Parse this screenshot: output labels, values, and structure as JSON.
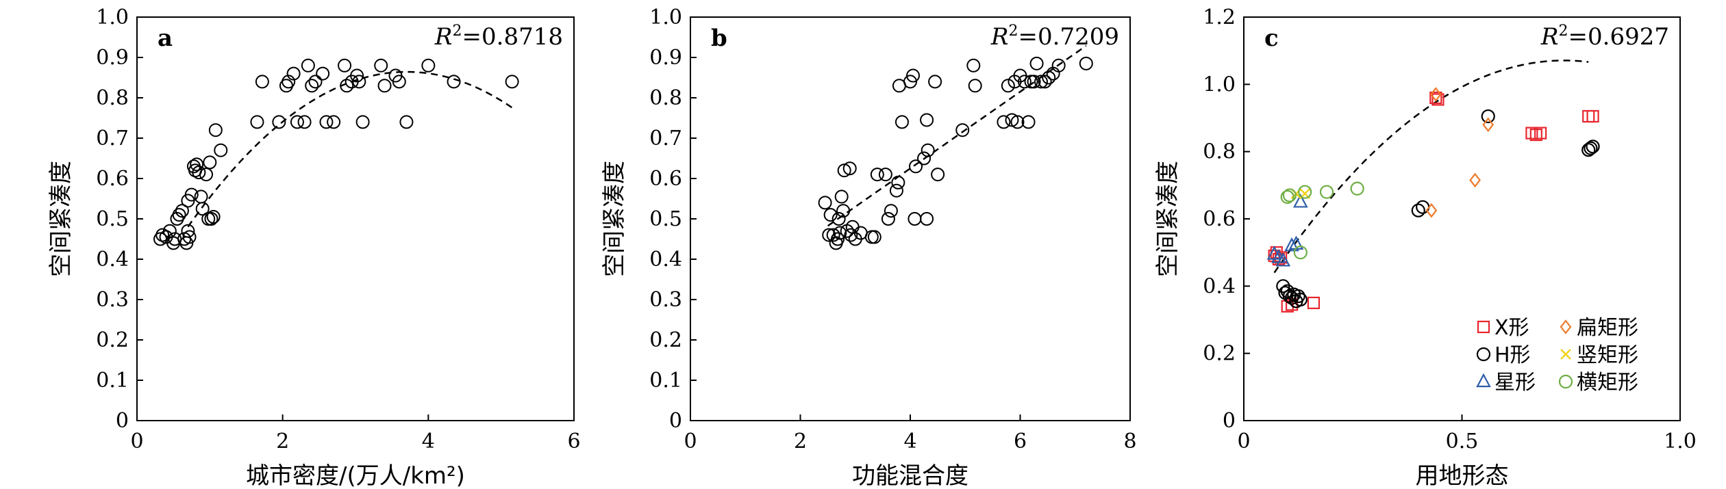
{
  "chart_data": [
    {
      "type": "scatter",
      "panel_label": "a",
      "r2_label": "R",
      "r2_value": "=0.8718",
      "xlabel": "城市密度/(万人/km²)",
      "ylabel": "空间紧凑度",
      "xlim": [
        0,
        6
      ],
      "ylim": [
        0,
        1.0
      ],
      "xticks": [
        "0",
        "2",
        "4",
        "6"
      ],
      "yticks": [
        "0",
        "0.1",
        "0.2",
        "0.3",
        "0.4",
        "0.5",
        "0.6",
        "0.7",
        "0.8",
        "0.9",
        "1.0"
      ],
      "fit": {
        "type": "polynomial",
        "coef": [
          -0.0425,
          0.315,
          0.2806
        ],
        "x_range": [
          0.7,
          5.15
        ]
      },
      "points": [
        [
          0.32,
          0.45
        ],
        [
          0.35,
          0.46
        ],
        [
          0.4,
          0.455
        ],
        [
          0.45,
          0.47
        ],
        [
          0.5,
          0.44
        ],
        [
          0.52,
          0.45
        ],
        [
          0.55,
          0.5
        ],
        [
          0.58,
          0.51
        ],
        [
          0.62,
          0.52
        ],
        [
          0.65,
          0.45
        ],
        [
          0.68,
          0.44
        ],
        [
          0.7,
          0.47
        ],
        [
          0.72,
          0.455
        ],
        [
          0.7,
          0.545
        ],
        [
          0.75,
          0.56
        ],
        [
          0.78,
          0.63
        ],
        [
          0.8,
          0.62
        ],
        [
          0.82,
          0.635
        ],
        [
          0.85,
          0.615
        ],
        [
          0.88,
          0.555
        ],
        [
          0.9,
          0.525
        ],
        [
          0.95,
          0.61
        ],
        [
          0.98,
          0.5
        ],
        [
          1.0,
          0.64
        ],
        [
          1.02,
          0.5
        ],
        [
          1.05,
          0.505
        ],
        [
          1.08,
          0.72
        ],
        [
          1.15,
          0.67
        ],
        [
          1.65,
          0.74
        ],
        [
          1.72,
          0.84
        ],
        [
          1.95,
          0.74
        ],
        [
          2.05,
          0.83
        ],
        [
          2.08,
          0.84
        ],
        [
          2.15,
          0.86
        ],
        [
          2.2,
          0.74
        ],
        [
          2.3,
          0.74
        ],
        [
          2.35,
          0.88
        ],
        [
          2.4,
          0.83
        ],
        [
          2.45,
          0.84
        ],
        [
          2.55,
          0.86
        ],
        [
          2.6,
          0.74
        ],
        [
          2.7,
          0.74
        ],
        [
          2.85,
          0.88
        ],
        [
          2.88,
          0.83
        ],
        [
          2.95,
          0.84
        ],
        [
          3.02,
          0.855
        ],
        [
          3.05,
          0.84
        ],
        [
          3.1,
          0.74
        ],
        [
          3.35,
          0.88
        ],
        [
          3.4,
          0.83
        ],
        [
          3.55,
          0.855
        ],
        [
          3.6,
          0.84
        ],
        [
          3.7,
          0.74
        ],
        [
          4.0,
          0.88
        ],
        [
          4.35,
          0.84
        ],
        [
          5.15,
          0.84
        ]
      ]
    },
    {
      "type": "scatter",
      "panel_label": "b",
      "r2_label": "R",
      "r2_value": "=0.7209",
      "xlabel": "功能混合度",
      "ylabel": "空间紧凑度",
      "xlim": [
        0,
        8
      ],
      "ylim": [
        0,
        1.0
      ],
      "xticks": [
        "0",
        "2",
        "4",
        "6",
        "8"
      ],
      "yticks": [
        "0",
        "0.1",
        "0.2",
        "0.3",
        "0.4",
        "0.5",
        "0.6",
        "0.7",
        "0.8",
        "0.9",
        "1.0"
      ],
      "fit": {
        "type": "linear",
        "coef": [
          0.095,
          0.245
        ],
        "x_range": [
          2.5,
          7.2
        ]
      },
      "points": [
        [
          2.45,
          0.54
        ],
        [
          2.52,
          0.46
        ],
        [
          2.55,
          0.51
        ],
        [
          2.6,
          0.46
        ],
        [
          2.65,
          0.44
        ],
        [
          2.68,
          0.45
        ],
        [
          2.7,
          0.5
        ],
        [
          2.72,
          0.465
        ],
        [
          2.75,
          0.555
        ],
        [
          2.78,
          0.52
        ],
        [
          2.8,
          0.62
        ],
        [
          2.85,
          0.47
        ],
        [
          2.9,
          0.625
        ],
        [
          2.92,
          0.46
        ],
        [
          2.95,
          0.48
        ],
        [
          3.0,
          0.45
        ],
        [
          3.1,
          0.465
        ],
        [
          3.3,
          0.455
        ],
        [
          3.35,
          0.455
        ],
        [
          3.4,
          0.61
        ],
        [
          3.55,
          0.61
        ],
        [
          3.6,
          0.5
        ],
        [
          3.65,
          0.52
        ],
        [
          3.75,
          0.57
        ],
        [
          3.78,
          0.59
        ],
        [
          3.8,
          0.83
        ],
        [
          3.85,
          0.74
        ],
        [
          4.0,
          0.84
        ],
        [
          4.05,
          0.855
        ],
        [
          4.08,
          0.5
        ],
        [
          4.1,
          0.63
        ],
        [
          4.25,
          0.65
        ],
        [
          4.3,
          0.5
        ],
        [
          4.32,
          0.67
        ],
        [
          4.3,
          0.745
        ],
        [
          4.45,
          0.84
        ],
        [
          4.5,
          0.61
        ],
        [
          4.95,
          0.72
        ],
        [
          5.15,
          0.88
        ],
        [
          5.18,
          0.83
        ],
        [
          5.7,
          0.74
        ],
        [
          5.78,
          0.83
        ],
        [
          5.85,
          0.745
        ],
        [
          5.9,
          0.84
        ],
        [
          5.95,
          0.74
        ],
        [
          6.0,
          0.855
        ],
        [
          6.08,
          0.84
        ],
        [
          6.15,
          0.74
        ],
        [
          6.2,
          0.84
        ],
        [
          6.25,
          0.84
        ],
        [
          6.3,
          0.885
        ],
        [
          6.38,
          0.84
        ],
        [
          6.45,
          0.84
        ],
        [
          6.52,
          0.85
        ],
        [
          6.6,
          0.86
        ],
        [
          6.7,
          0.88
        ],
        [
          7.2,
          0.885
        ]
      ]
    },
    {
      "type": "scatter",
      "panel_label": "c",
      "r2_label": "R",
      "r2_value": "=0.6927",
      "xlabel": "用地形态",
      "ylabel": "空间紧凑度",
      "xlim": [
        0,
        1.0
      ],
      "ylim": [
        0,
        1.2
      ],
      "xticks": [
        "0",
        "0.5",
        "1.0"
      ],
      "yticks": [
        "0",
        "0.2",
        "0.4",
        "0.6",
        "0.8",
        "1.0",
        "1.2"
      ],
      "fit": {
        "type": "polynomial",
        "coef": [
          -1.43,
          2.1,
          0.3
        ],
        "x_range": [
          0.07,
          0.79
        ]
      },
      "colors": {
        "x": "#e8262e",
        "h": "#000000",
        "star": "#2d5da8",
        "flat": "#ee7a2a",
        "vertical": "#f0d21a",
        "horizontal": "#6fae45"
      },
      "legend": [
        {
          "key": "x",
          "name": "X形"
        },
        {
          "key": "flat",
          "name": "扁矩形"
        },
        {
          "key": "h",
          "name": "H形"
        },
        {
          "key": "vertical",
          "name": "竖矩形"
        },
        {
          "key": "star",
          "name": "星形"
        },
        {
          "key": "horizontal",
          "name": "横矩形"
        }
      ],
      "series": [
        {
          "key": "x",
          "points": [
            [
              0.07,
              0.49
            ],
            [
              0.075,
              0.5
            ],
            [
              0.08,
              0.48
            ],
            [
              0.085,
              0.485
            ],
            [
              0.1,
              0.34
            ],
            [
              0.11,
              0.345
            ],
            [
              0.16,
              0.35
            ],
            [
              0.44,
              0.96
            ],
            [
              0.445,
              0.955
            ],
            [
              0.66,
              0.855
            ],
            [
              0.67,
              0.85
            ],
            [
              0.68,
              0.855
            ],
            [
              0.79,
              0.905
            ],
            [
              0.8,
              0.905
            ]
          ]
        },
        {
          "key": "h",
          "points": [
            [
              0.09,
              0.4
            ],
            [
              0.095,
              0.38
            ],
            [
              0.1,
              0.385
            ],
            [
              0.105,
              0.37
            ],
            [
              0.11,
              0.365
            ],
            [
              0.115,
              0.375
            ],
            [
              0.12,
              0.355
            ],
            [
              0.125,
              0.37
            ],
            [
              0.13,
              0.36
            ],
            [
              0.4,
              0.625
            ],
            [
              0.41,
              0.635
            ],
            [
              0.56,
              0.905
            ],
            [
              0.79,
              0.805
            ],
            [
              0.795,
              0.81
            ],
            [
              0.8,
              0.815
            ]
          ]
        },
        {
          "key": "star",
          "points": [
            [
              0.07,
              0.495
            ],
            [
              0.08,
              0.485
            ],
            [
              0.09,
              0.475
            ],
            [
              0.11,
              0.52
            ],
            [
              0.12,
              0.525
            ],
            [
              0.13,
              0.65
            ]
          ]
        },
        {
          "key": "flat",
          "points": [
            [
              0.43,
              0.625
            ],
            [
              0.44,
              0.97
            ],
            [
              0.53,
              0.715
            ],
            [
              0.56,
              0.88
            ]
          ]
        },
        {
          "key": "vertical",
          "points": [
            [
              0.12,
              0.675
            ],
            [
              0.14,
              0.675
            ]
          ]
        },
        {
          "key": "horizontal",
          "points": [
            [
              0.1,
              0.665
            ],
            [
              0.105,
              0.67
            ],
            [
              0.13,
              0.5
            ],
            [
              0.14,
              0.68
            ],
            [
              0.19,
              0.68
            ],
            [
              0.26,
              0.69
            ]
          ]
        }
      ]
    }
  ]
}
